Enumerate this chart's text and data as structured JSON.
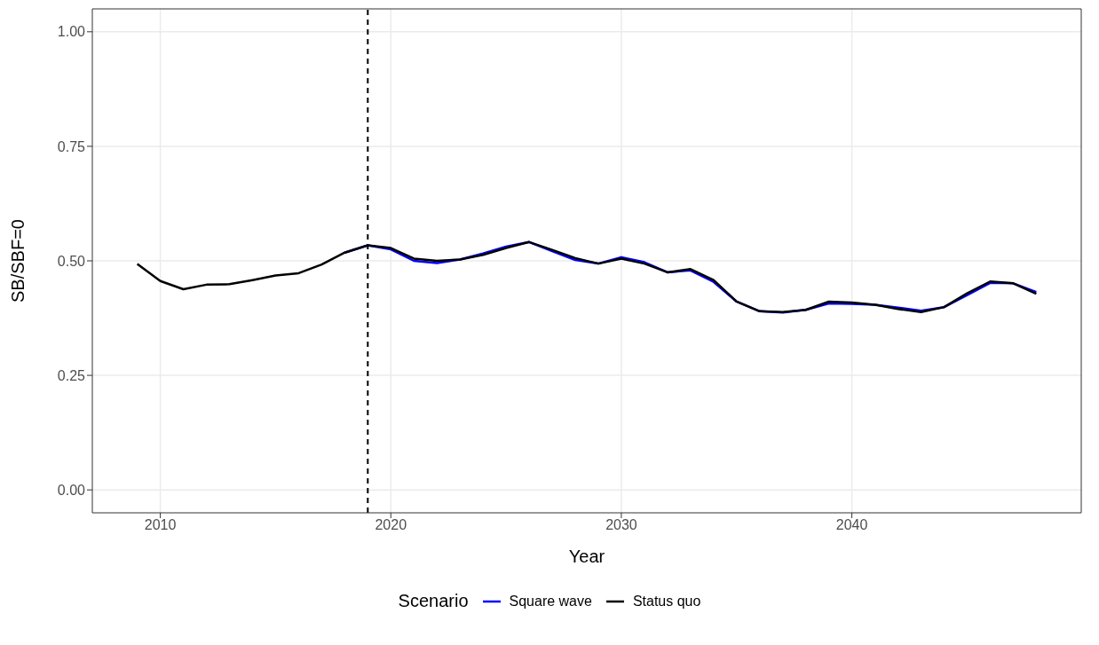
{
  "chart_data": {
    "type": "line",
    "xlabel": "Year",
    "ylabel": "SB/SBF=0",
    "legend_title": "Scenario",
    "legend": "bottom",
    "grid": true,
    "line_style": "solid",
    "marker": "none",
    "x": [
      2009,
      2010,
      2011,
      2012,
      2013,
      2014,
      2015,
      2016,
      2017,
      2018,
      2019,
      2020,
      2021,
      2022,
      2023,
      2024,
      2025,
      2026,
      2027,
      2028,
      2029,
      2030,
      2031,
      2032,
      2033,
      2034,
      2035,
      2036,
      2037,
      2038,
      2039,
      2040,
      2041,
      2042,
      2043,
      2044,
      2045,
      2046,
      2047,
      2048
    ],
    "xlim": [
      2007.05,
      2049.95
    ],
    "xticks": [
      2010,
      2020,
      2030,
      2040
    ],
    "ylim": [
      -0.05,
      1.05
    ],
    "yticks": [
      {
        "value": 0,
        "label": "0.00"
      },
      {
        "value": 0.25,
        "label": "0.25"
      },
      {
        "value": 0.5,
        "label": "0.50"
      },
      {
        "value": 0.75,
        "label": "0.75"
      },
      {
        "value": 1,
        "label": "1.00"
      }
    ],
    "ref_lines": [
      {
        "axis": "x",
        "value": 2019,
        "color": "#000000",
        "line_style": "dashed"
      }
    ],
    "series": [
      {
        "name": "Square wave",
        "color": "#0000ff",
        "values": [
          null,
          null,
          null,
          null,
          null,
          null,
          null,
          null,
          null,
          0.518,
          0.534,
          0.525,
          0.5,
          0.495,
          0.503,
          0.516,
          0.531,
          0.541,
          0.521,
          0.502,
          0.494,
          0.508,
          0.497,
          0.475,
          0.479,
          0.454,
          0.411,
          0.39,
          0.387,
          0.393,
          0.407,
          0.406,
          0.404,
          0.398,
          0.391,
          0.399,
          0.425,
          0.452,
          0.451,
          0.432
        ]
      },
      {
        "name": "Status quo",
        "color": "#000000",
        "values": [
          0.493,
          0.456,
          0.438,
          0.448,
          0.449,
          0.458,
          0.468,
          0.473,
          0.492,
          0.518,
          0.534,
          0.528,
          0.505,
          0.5,
          0.503,
          0.513,
          0.528,
          0.541,
          0.524,
          0.506,
          0.494,
          0.505,
          0.494,
          0.475,
          0.482,
          0.458,
          0.411,
          0.39,
          0.388,
          0.393,
          0.411,
          0.409,
          0.404,
          0.395,
          0.388,
          0.399,
          0.429,
          0.455,
          0.451,
          0.428
        ]
      }
    ]
  }
}
